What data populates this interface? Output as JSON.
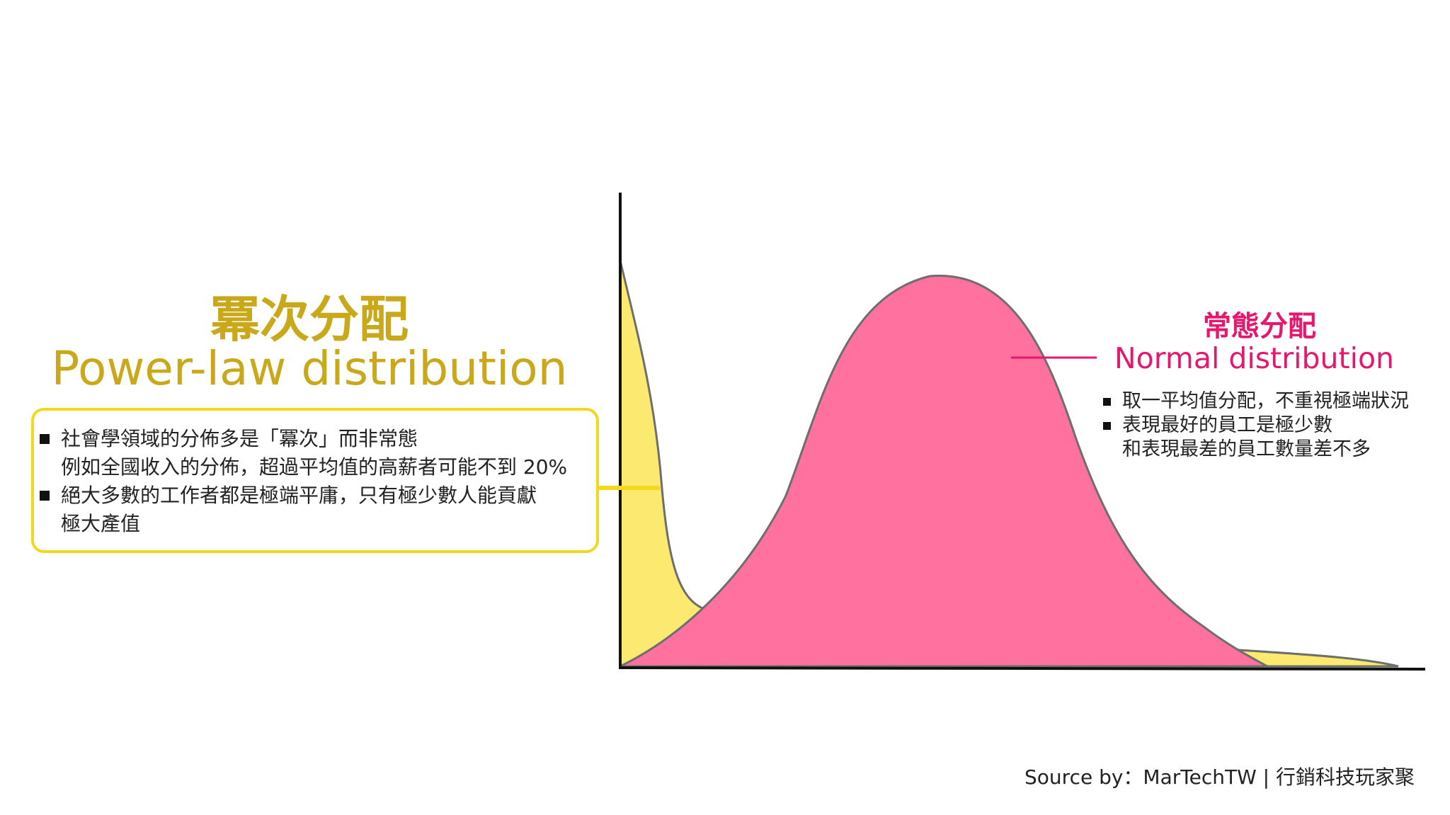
{
  "power_law": {
    "title_zh": "冪次分配",
    "title_en": "Power-law distribution",
    "bullets": [
      [
        "社會學領域的分佈多是「冪次」而非常態",
        "例如全國收入的分佈，超過平均值的高薪者可能不到 20%"
      ],
      [
        "絕大多數的工作者都是極端平庸，只有極少數人能貢獻",
        "極大產值"
      ]
    ]
  },
  "normal": {
    "title_zh": "常態分配",
    "title_en": "Normal distribution",
    "bullets": [
      [
        "取一平均值分配，不重視極端狀況"
      ],
      [
        "表現最好的員工是極少數",
        "和表現最差的員工數量差不多"
      ]
    ]
  },
  "source": "Source by：MarTechTW | 行銷科技玩家聚"
}
